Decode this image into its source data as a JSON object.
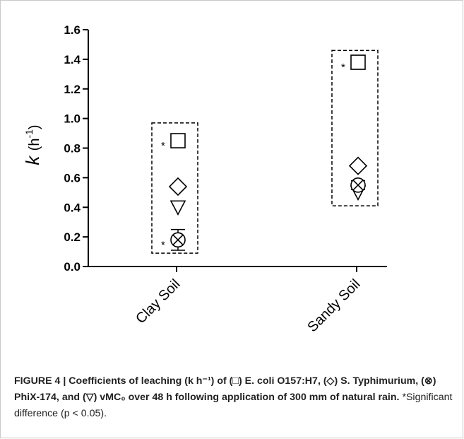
{
  "caption": {
    "label": "FIGURE 4 | Coefficients of leaching (k h⁻¹) of (□) E. coli O157:H7, (◇) S. Typhimurium, (⊗) PhiX-174, and (▽) vMC₀ over 48 h following application of 300 mm of natural rain.",
    "note": "*Significant difference (p < 0.05)."
  },
  "chart_data": {
    "type": "scatter",
    "title": "",
    "xlabel": "",
    "ylabel": "k (h-1)",
    "ylim": [
      0.0,
      1.6
    ],
    "yticks": [
      "0.0",
      "0.2",
      "0.4",
      "0.6",
      "0.8",
      "1.0",
      "1.2",
      "1.4",
      "1.6"
    ],
    "categories": [
      "Clay Soil",
      "Sandy Soil"
    ],
    "series": [
      {
        "name": "E. coli O157:H7",
        "marker": "square",
        "values": [
          0.85,
          1.38
        ],
        "significant": [
          true,
          true
        ]
      },
      {
        "name": "S. Typhimurium",
        "marker": "diamond",
        "values": [
          0.54,
          0.68
        ],
        "significant": [
          false,
          false
        ]
      },
      {
        "name": "PhiX-174",
        "marker": "circle-x",
        "values": [
          0.18,
          0.55
        ],
        "error": [
          0.07,
          0.03
        ],
        "significant": [
          true,
          false
        ]
      },
      {
        "name": "vMC0",
        "marker": "triangle-down",
        "values": [
          0.4,
          0.5
        ],
        "significant": [
          false,
          false
        ]
      }
    ],
    "group_boxes": [
      {
        "category": "Clay Soil",
        "range": [
          0.09,
          0.97
        ]
      },
      {
        "category": "Sandy Soil",
        "range": [
          0.41,
          1.46
        ]
      }
    ],
    "significance_marker": "*",
    "grid": false,
    "legend": "none"
  }
}
